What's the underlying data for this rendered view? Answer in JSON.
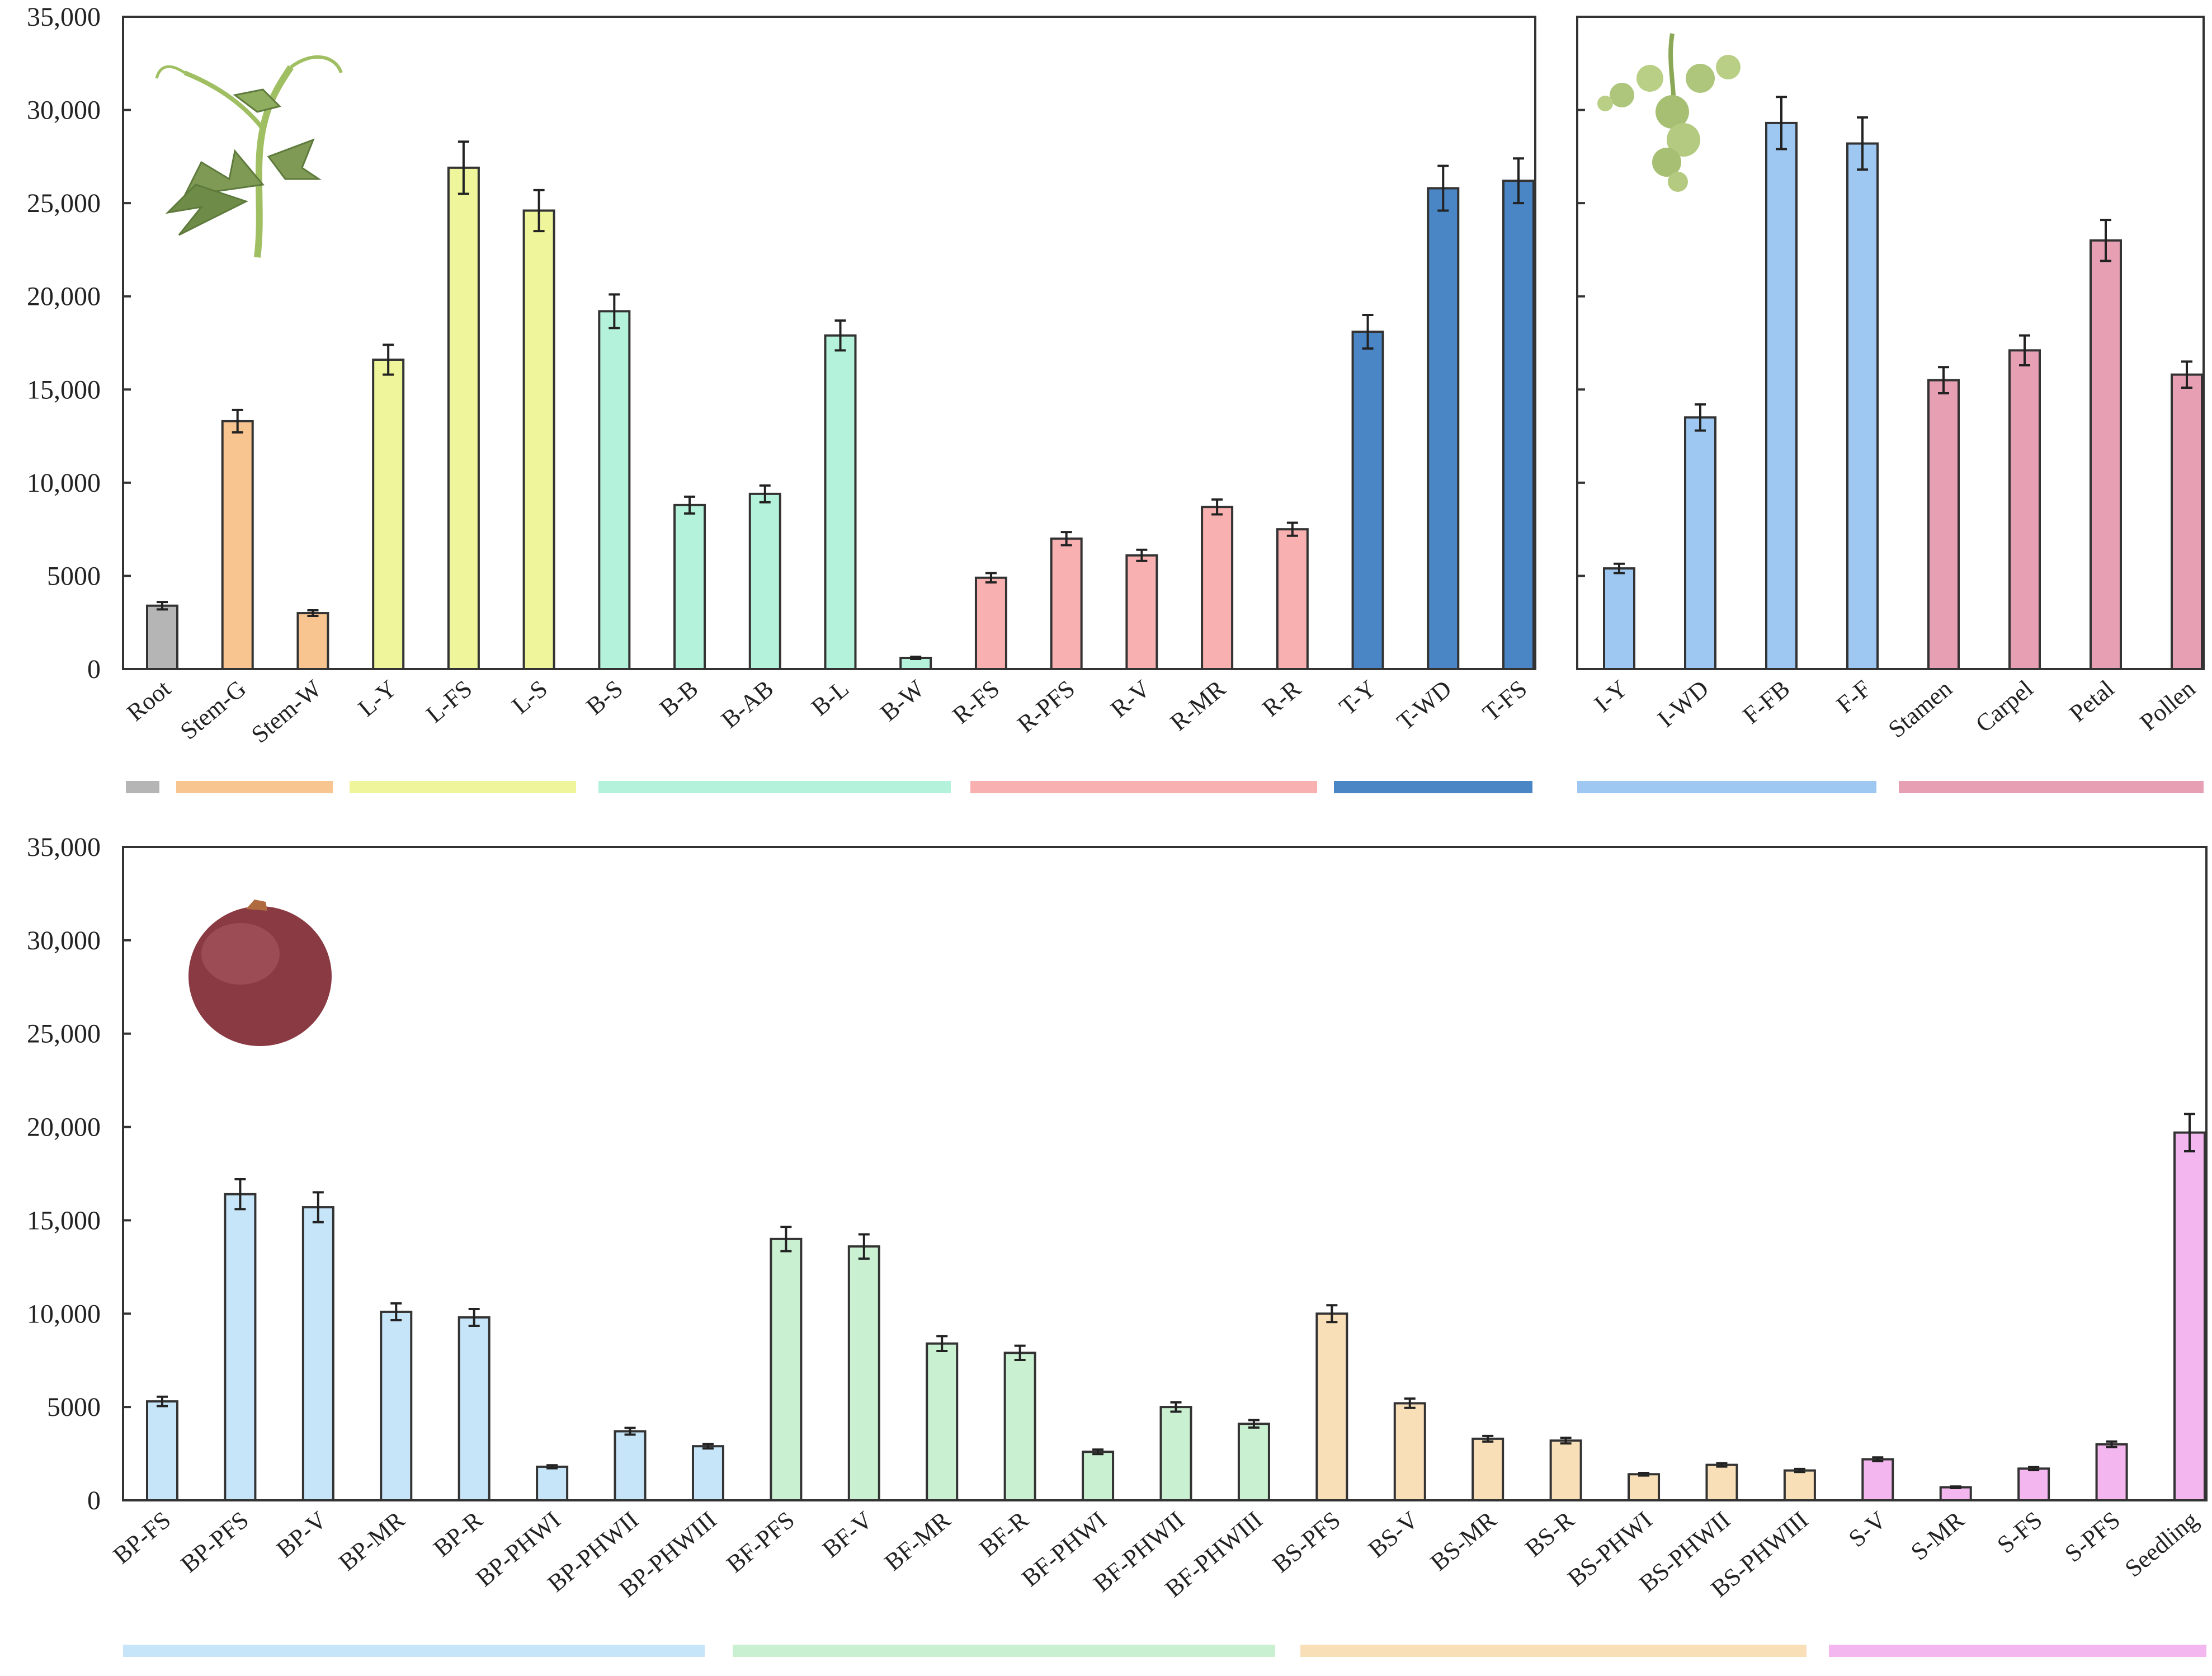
{
  "chart_data": [
    {
      "id": "top-left",
      "type": "bar",
      "title": "",
      "xlabel": "",
      "ylabel": "",
      "ylim": [
        0,
        35000
      ],
      "y_ticks": [
        "0",
        "5000",
        "10,000",
        "15,000",
        "20,000",
        "25,000",
        "30,000",
        "35,000"
      ],
      "grid": false,
      "picture": "grapevine-shoot",
      "categories": [
        "Root",
        "Stem-G",
        "Stem-W",
        "L-Y",
        "L-FS",
        "L-S",
        "B-S",
        "B-B",
        "B-AB",
        "B-L",
        "B-W",
        "R-FS",
        "R-PFS",
        "R-V",
        "R-MR",
        "R-R",
        "T-Y",
        "T-WD",
        "T-FS"
      ],
      "values": [
        3400,
        13300,
        3000,
        16600,
        26900,
        24600,
        19200,
        8800,
        9400,
        17900,
        600,
        4900,
        7000,
        6100,
        8700,
        7500,
        18100,
        25800,
        26200
      ],
      "errors": [
        200,
        600,
        150,
        800,
        1400,
        1100,
        900,
        450,
        450,
        800,
        60,
        250,
        350,
        300,
        400,
        350,
        900,
        1200,
        1200
      ],
      "groups": [
        {
          "from": 0,
          "to": 0,
          "color": "#b5b5b5"
        },
        {
          "from": 1,
          "to": 2,
          "color": "#f8c48f"
        },
        {
          "from": 3,
          "to": 5,
          "color": "#eef59a"
        },
        {
          "from": 6,
          "to": 10,
          "color": "#b5f2dc"
        },
        {
          "from": 11,
          "to": 15,
          "color": "#f9b0b0"
        },
        {
          "from": 16,
          "to": 18,
          "color": "#4a86c5"
        }
      ]
    },
    {
      "id": "top-right",
      "type": "bar",
      "title": "",
      "xlabel": "",
      "ylabel": "",
      "ylim": [
        0,
        35000
      ],
      "y_ticks": [
        "0",
        "5000",
        "10,000",
        "15,000",
        "20,000",
        "25,000",
        "30,000",
        "35,000"
      ],
      "grid": false,
      "picture": "inflorescence",
      "categories": [
        "I-Y",
        "I-WD",
        "F-FB",
        "F-F",
        "Stamen",
        "Carpel",
        "Petal",
        "Pollen"
      ],
      "values": [
        5400,
        13500,
        29300,
        28200,
        15500,
        17100,
        23000,
        15800
      ],
      "errors": [
        250,
        700,
        1400,
        1400,
        700,
        800,
        1100,
        700
      ],
      "groups": [
        {
          "from": 0,
          "to": 3,
          "color": "#9ec8f2"
        },
        {
          "from": 4,
          "to": 7,
          "color": "#e69fb3"
        }
      ]
    },
    {
      "id": "bottom",
      "type": "bar",
      "title": "",
      "xlabel": "",
      "ylabel": "",
      "ylim": [
        0,
        35000
      ],
      "y_ticks": [
        "0",
        "5000",
        "10,000",
        "15,000",
        "20,000",
        "25,000",
        "30,000",
        "35,000"
      ],
      "grid": false,
      "picture": "grape-berry",
      "categories": [
        "BP-FS",
        "BP-PFS",
        "BP-V",
        "BP-MR",
        "BP-R",
        "BP-PHWI",
        "BP-PHWII",
        "BP-PHWIII",
        "BF-PFS",
        "BF-V",
        "BF-MR",
        "BF-R",
        "BF-PHWI",
        "BF-PHWII",
        "BF-PHWIII",
        "BS-PFS",
        "BS-V",
        "BS-MR",
        "BS-R",
        "BS-PHWI",
        "BS-PHWII",
        "BS-PHWIII",
        "S-V",
        "S-MR",
        "S-FS",
        "S-PFS",
        "Seedling"
      ],
      "values": [
        5300,
        16400,
        15700,
        10100,
        9800,
        1800,
        3700,
        2900,
        14000,
        13600,
        8400,
        7900,
        2600,
        5000,
        4100,
        10000,
        5200,
        3300,
        3200,
        1400,
        1900,
        1600,
        2200,
        700,
        1700,
        3000,
        19700
      ],
      "errors": [
        250,
        800,
        800,
        450,
        450,
        80,
        180,
        120,
        650,
        650,
        400,
        380,
        120,
        250,
        200,
        450,
        250,
        150,
        150,
        70,
        90,
        80,
        100,
        40,
        80,
        150,
        1000
      ],
      "groups": [
        {
          "from": 0,
          "to": 7,
          "color": "#c6e5f9"
        },
        {
          "from": 8,
          "to": 14,
          "color": "#c9f0d0"
        },
        {
          "from": 15,
          "to": 21,
          "color": "#f9dfb8"
        },
        {
          "from": 22,
          "to": 26,
          "color": "#f4b6ef"
        }
      ]
    }
  ]
}
